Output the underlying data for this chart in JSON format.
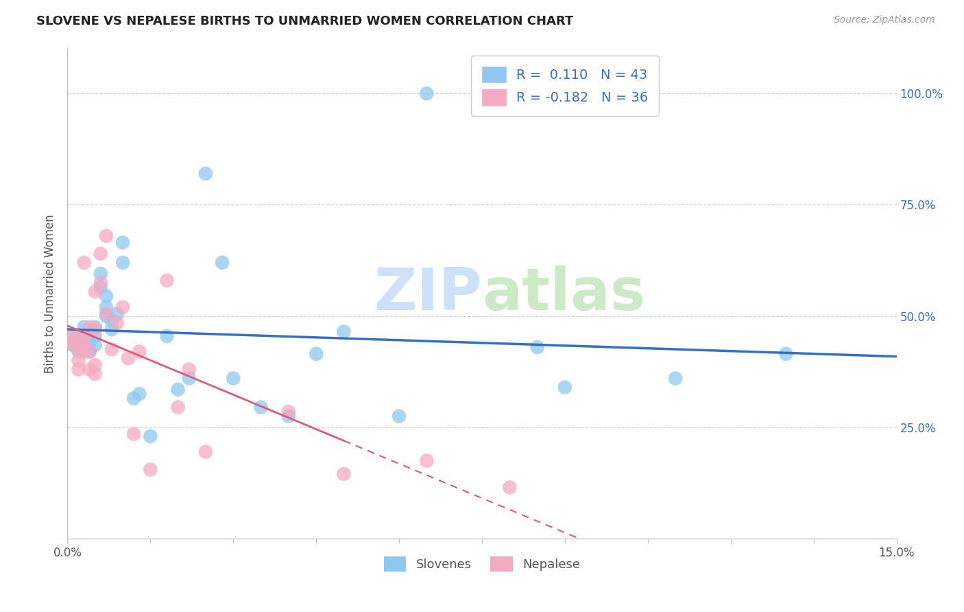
{
  "title": "SLOVENE VS NEPALESE BIRTHS TO UNMARRIED WOMEN CORRELATION CHART",
  "source": "Source: ZipAtlas.com",
  "ylabel": "Births to Unmarried Women",
  "blue_r": 0.11,
  "blue_n": 43,
  "pink_r": -0.182,
  "pink_n": 36,
  "blue_color": "#8EC8F0",
  "pink_color": "#F5AABF",
  "blue_line_color": "#3570C0",
  "pink_line_color": "#E05878",
  "watermark_zip": "ZIP",
  "watermark_atlas": "atlas",
  "xmin": 0.0,
  "xmax": 0.15,
  "ymin": 0.0,
  "ymax": 1.1,
  "ytick_vals": [
    0.25,
    0.5,
    0.75,
    1.0
  ],
  "ytick_labels": [
    "25.0%",
    "50.0%",
    "75.0%",
    "100.0%"
  ],
  "xtick_edge_left": "0.0%",
  "xtick_edge_right": "15.0%",
  "blue_scatter_x": [
    0.001,
    0.001,
    0.002,
    0.002,
    0.003,
    0.003,
    0.003,
    0.003,
    0.004,
    0.004,
    0.004,
    0.005,
    0.005,
    0.005,
    0.006,
    0.006,
    0.007,
    0.007,
    0.007,
    0.008,
    0.008,
    0.009,
    0.01,
    0.01,
    0.012,
    0.013,
    0.015,
    0.018,
    0.02,
    0.022,
    0.025,
    0.028,
    0.03,
    0.035,
    0.04,
    0.045,
    0.05,
    0.06,
    0.065,
    0.085,
    0.09,
    0.11,
    0.13
  ],
  "blue_scatter_y": [
    0.435,
    0.455,
    0.42,
    0.445,
    0.43,
    0.44,
    0.455,
    0.475,
    0.42,
    0.44,
    0.46,
    0.435,
    0.455,
    0.475,
    0.565,
    0.595,
    0.5,
    0.52,
    0.545,
    0.47,
    0.49,
    0.505,
    0.62,
    0.665,
    0.315,
    0.325,
    0.23,
    0.455,
    0.335,
    0.36,
    0.82,
    0.62,
    0.36,
    0.295,
    0.275,
    0.415,
    0.465,
    0.275,
    1.0,
    0.43,
    0.34,
    0.36,
    0.415
  ],
  "pink_scatter_x": [
    0.001,
    0.001,
    0.001,
    0.002,
    0.002,
    0.002,
    0.003,
    0.003,
    0.003,
    0.003,
    0.004,
    0.004,
    0.004,
    0.005,
    0.005,
    0.005,
    0.005,
    0.006,
    0.006,
    0.007,
    0.007,
    0.008,
    0.009,
    0.01,
    0.011,
    0.012,
    0.013,
    0.015,
    0.018,
    0.02,
    0.022,
    0.025,
    0.04,
    0.05,
    0.065,
    0.08
  ],
  "pink_scatter_y": [
    0.435,
    0.445,
    0.455,
    0.38,
    0.4,
    0.425,
    0.42,
    0.44,
    0.455,
    0.62,
    0.38,
    0.42,
    0.475,
    0.37,
    0.39,
    0.47,
    0.555,
    0.575,
    0.64,
    0.505,
    0.68,
    0.425,
    0.485,
    0.52,
    0.405,
    0.235,
    0.42,
    0.155,
    0.58,
    0.295,
    0.38,
    0.195,
    0.285,
    0.145,
    0.175,
    0.115
  ]
}
